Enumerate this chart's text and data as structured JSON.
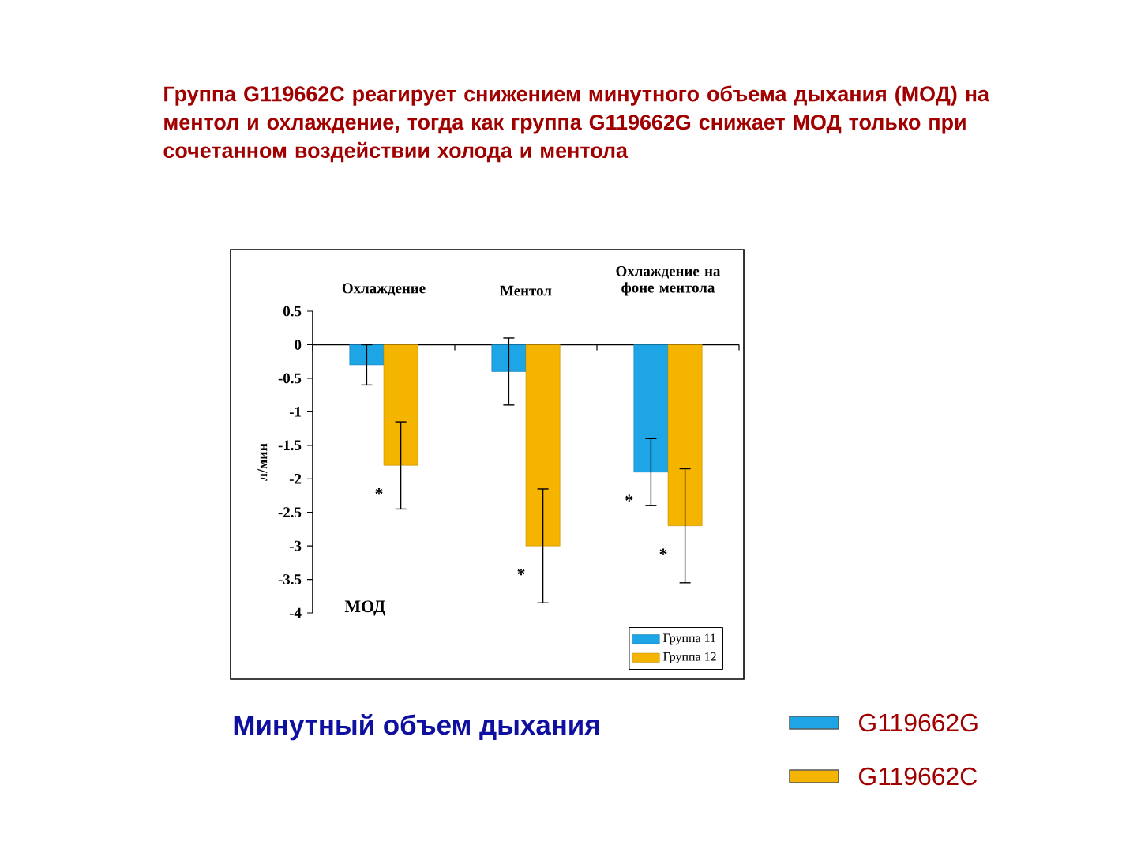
{
  "chart_data": {
    "type": "bar",
    "title": "Группа G119662C реагирует снижением минутного объема дыхания (МОД) на ментол и охлаждение, тогда как группа G119662G снижает МОД только при сочетанном воздействии холода и ментола",
    "categories": [
      "Охлаждение",
      "Ментол",
      "Охлаждение на фоне ментола"
    ],
    "ylabel": "л/мин",
    "series": [
      {
        "name": "Группа 11",
        "color": "#1ea5e6",
        "values": [
          -0.3,
          -0.4,
          -1.9
        ],
        "errors": [
          0.3,
          0.5,
          0.5
        ]
      },
      {
        "name": "Группа 12",
        "color": "#f5b400",
        "values": [
          -1.8,
          -3.0,
          -2.7
        ],
        "errors": [
          0.65,
          0.85,
          0.85
        ]
      }
    ],
    "ylim": [
      -4,
      0.5
    ],
    "yticks": [
      -4,
      -3.5,
      -3,
      -2.5,
      -2,
      -1.5,
      -1,
      -0.5,
      0,
      0.5
    ],
    "legend": "bottom right",
    "annotations": [
      {
        "text": "*",
        "x": "Охлаждение",
        "y": -1.8
      },
      {
        "text": "*",
        "x": "Ментол",
        "y": -3.0
      },
      {
        "text": "*",
        "x": "Охлаждение на фоне ментола",
        "y": -1.9
      },
      {
        "text": "*",
        "x": "Охлаждение на фоне ментола",
        "y": -2.7
      },
      "МОД",
      "Минутный объем дыхания",
      "G119662G",
      "G119662C"
    ]
  }
}
